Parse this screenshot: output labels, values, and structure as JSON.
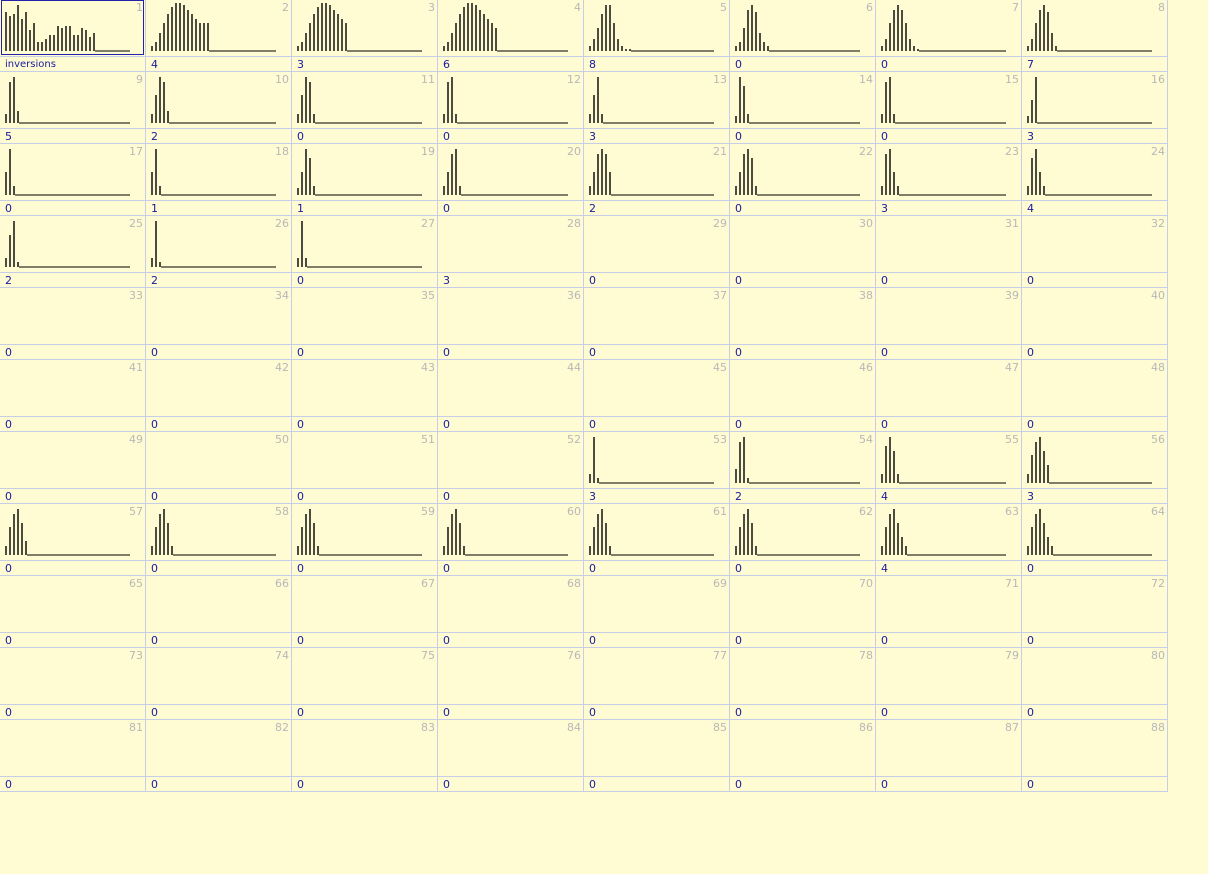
{
  "selected_index": 0,
  "cells": [
    {
      "num": "1",
      "label": "inversions",
      "bars": [
        17,
        15,
        16,
        20,
        14,
        17,
        9,
        12,
        4,
        4,
        5,
        7,
        7,
        11,
        10,
        11,
        11,
        7,
        7,
        10,
        9,
        6,
        8
      ]
    },
    {
      "num": "2",
      "label": "4",
      "bars": [
        2,
        4,
        8,
        12,
        16,
        19,
        21,
        21,
        20,
        18,
        16,
        14,
        12,
        12,
        12
      ]
    },
    {
      "num": "3",
      "label": "3",
      "bars": [
        2,
        4,
        8,
        12,
        16,
        19,
        21,
        21,
        20,
        18,
        16,
        14,
        12
      ]
    },
    {
      "num": "4",
      "label": "6",
      "bars": [
        2,
        4,
        8,
        12,
        16,
        19,
        21,
        21,
        20,
        18,
        16,
        14,
        12,
        10
      ]
    },
    {
      "num": "5",
      "label": "8",
      "bars": [
        2,
        5,
        10,
        16,
        20,
        20,
        12,
        5,
        2,
        1,
        1
      ]
    },
    {
      "num": "6",
      "label": "0",
      "bars": [
        2,
        4,
        10,
        18,
        20,
        17,
        8,
        4,
        2
      ]
    },
    {
      "num": "7",
      "label": "0",
      "bars": [
        2,
        5,
        12,
        18,
        20,
        18,
        12,
        5,
        2,
        1
      ]
    },
    {
      "num": "8",
      "label": "7",
      "bars": [
        2,
        5,
        12,
        18,
        20,
        17,
        8,
        2
      ]
    },
    {
      "num": "9",
      "label": "5",
      "bars": [
        4,
        18,
        20,
        5
      ]
    },
    {
      "num": "10",
      "label": "2",
      "bars": [
        4,
        12,
        20,
        18,
        5
      ]
    },
    {
      "num": "11",
      "label": "0",
      "bars": [
        4,
        12,
        20,
        18,
        4
      ]
    },
    {
      "num": "12",
      "label": "0",
      "bars": [
        4,
        18,
        20,
        4
      ]
    },
    {
      "num": "13",
      "label": "3",
      "bars": [
        4,
        12,
        20,
        4
      ]
    },
    {
      "num": "14",
      "label": "0",
      "bars": [
        3,
        20,
        16,
        4
      ]
    },
    {
      "num": "15",
      "label": "0",
      "bars": [
        4,
        18,
        20,
        4
      ]
    },
    {
      "num": "16",
      "label": "3",
      "bars": [
        3,
        10,
        20
      ]
    },
    {
      "num": "17",
      "label": "0",
      "bars": [
        10,
        20,
        4
      ]
    },
    {
      "num": "18",
      "label": "1",
      "bars": [
        10,
        20,
        4
      ]
    },
    {
      "num": "19",
      "label": "1",
      "bars": [
        3,
        10,
        20,
        16,
        4
      ]
    },
    {
      "num": "20",
      "label": "0",
      "bars": [
        4,
        10,
        18,
        20,
        4
      ]
    },
    {
      "num": "21",
      "label": "2",
      "bars": [
        4,
        10,
        18,
        20,
        18,
        10
      ]
    },
    {
      "num": "22",
      "label": "0",
      "bars": [
        4,
        10,
        18,
        20,
        16,
        4
      ]
    },
    {
      "num": "23",
      "label": "3",
      "bars": [
        4,
        18,
        20,
        10,
        4
      ]
    },
    {
      "num": "24",
      "label": "4",
      "bars": [
        4,
        16,
        20,
        10,
        4
      ]
    },
    {
      "num": "25",
      "label": "2",
      "bars": [
        4,
        14,
        20,
        2
      ]
    },
    {
      "num": "26",
      "label": "2",
      "bars": [
        4,
        20,
        2
      ]
    },
    {
      "num": "27",
      "label": "0",
      "bars": [
        4,
        20,
        4
      ]
    },
    {
      "num": "28",
      "label": "3",
      "bars": []
    },
    {
      "num": "29",
      "label": "0",
      "bars": []
    },
    {
      "num": "30",
      "label": "0",
      "bars": []
    },
    {
      "num": "31",
      "label": "0",
      "bars": []
    },
    {
      "num": "32",
      "label": "0",
      "bars": []
    },
    {
      "num": "33",
      "label": "0",
      "bars": []
    },
    {
      "num": "34",
      "label": "0",
      "bars": []
    },
    {
      "num": "35",
      "label": "0",
      "bars": []
    },
    {
      "num": "36",
      "label": "0",
      "bars": []
    },
    {
      "num": "37",
      "label": "0",
      "bars": []
    },
    {
      "num": "38",
      "label": "0",
      "bars": []
    },
    {
      "num": "39",
      "label": "0",
      "bars": []
    },
    {
      "num": "40",
      "label": "0",
      "bars": []
    },
    {
      "num": "41",
      "label": "0",
      "bars": []
    },
    {
      "num": "42",
      "label": "0",
      "bars": []
    },
    {
      "num": "43",
      "label": "0",
      "bars": []
    },
    {
      "num": "44",
      "label": "0",
      "bars": []
    },
    {
      "num": "45",
      "label": "0",
      "bars": []
    },
    {
      "num": "46",
      "label": "0",
      "bars": []
    },
    {
      "num": "47",
      "label": "0",
      "bars": []
    },
    {
      "num": "48",
      "label": "0",
      "bars": []
    },
    {
      "num": "49",
      "label": "0",
      "bars": []
    },
    {
      "num": "50",
      "label": "0",
      "bars": []
    },
    {
      "num": "51",
      "label": "0",
      "bars": []
    },
    {
      "num": "52",
      "label": "0",
      "bars": []
    },
    {
      "num": "53",
      "label": "3",
      "bars": [
        4,
        20,
        2
      ]
    },
    {
      "num": "54",
      "label": "2",
      "bars": [
        6,
        18,
        20,
        2
      ]
    },
    {
      "num": "55",
      "label": "4",
      "bars": [
        4,
        16,
        20,
        14,
        4
      ]
    },
    {
      "num": "56",
      "label": "3",
      "bars": [
        4,
        12,
        18,
        20,
        14,
        8
      ]
    },
    {
      "num": "57",
      "label": "0",
      "bars": [
        4,
        12,
        18,
        20,
        14,
        6
      ]
    },
    {
      "num": "58",
      "label": "0",
      "bars": [
        4,
        12,
        18,
        20,
        14,
        4
      ]
    },
    {
      "num": "59",
      "label": "0",
      "bars": [
        4,
        12,
        18,
        20,
        14,
        4
      ]
    },
    {
      "num": "60",
      "label": "0",
      "bars": [
        4,
        12,
        18,
        20,
        14,
        4
      ]
    },
    {
      "num": "61",
      "label": "0",
      "bars": [
        4,
        12,
        18,
        20,
        14,
        4
      ]
    },
    {
      "num": "62",
      "label": "0",
      "bars": [
        4,
        12,
        18,
        20,
        14,
        4
      ]
    },
    {
      "num": "63",
      "label": "4",
      "bars": [
        4,
        12,
        18,
        20,
        14,
        8,
        4
      ]
    },
    {
      "num": "64",
      "label": "0",
      "bars": [
        4,
        12,
        18,
        20,
        14,
        8,
        4
      ]
    },
    {
      "num": "65",
      "label": "0",
      "bars": []
    },
    {
      "num": "66",
      "label": "0",
      "bars": []
    },
    {
      "num": "67",
      "label": "0",
      "bars": []
    },
    {
      "num": "68",
      "label": "0",
      "bars": []
    },
    {
      "num": "69",
      "label": "0",
      "bars": []
    },
    {
      "num": "70",
      "label": "0",
      "bars": []
    },
    {
      "num": "71",
      "label": "0",
      "bars": []
    },
    {
      "num": "72",
      "label": "0",
      "bars": []
    },
    {
      "num": "73",
      "label": "0",
      "bars": []
    },
    {
      "num": "74",
      "label": "0",
      "bars": []
    },
    {
      "num": "75",
      "label": "0",
      "bars": []
    },
    {
      "num": "76",
      "label": "0",
      "bars": []
    },
    {
      "num": "77",
      "label": "0",
      "bars": []
    },
    {
      "num": "78",
      "label": "0",
      "bars": []
    },
    {
      "num": "79",
      "label": "0",
      "bars": []
    },
    {
      "num": "80",
      "label": "0",
      "bars": []
    },
    {
      "num": "81",
      "label": "0",
      "bars": []
    },
    {
      "num": "82",
      "label": "0",
      "bars": []
    },
    {
      "num": "83",
      "label": "0",
      "bars": []
    },
    {
      "num": "84",
      "label": "0",
      "bars": []
    },
    {
      "num": "85",
      "label": "0",
      "bars": []
    },
    {
      "num": "86",
      "label": "0",
      "bars": []
    },
    {
      "num": "87",
      "label": "0",
      "bars": []
    },
    {
      "num": "88",
      "label": "0",
      "bars": []
    }
  ]
}
